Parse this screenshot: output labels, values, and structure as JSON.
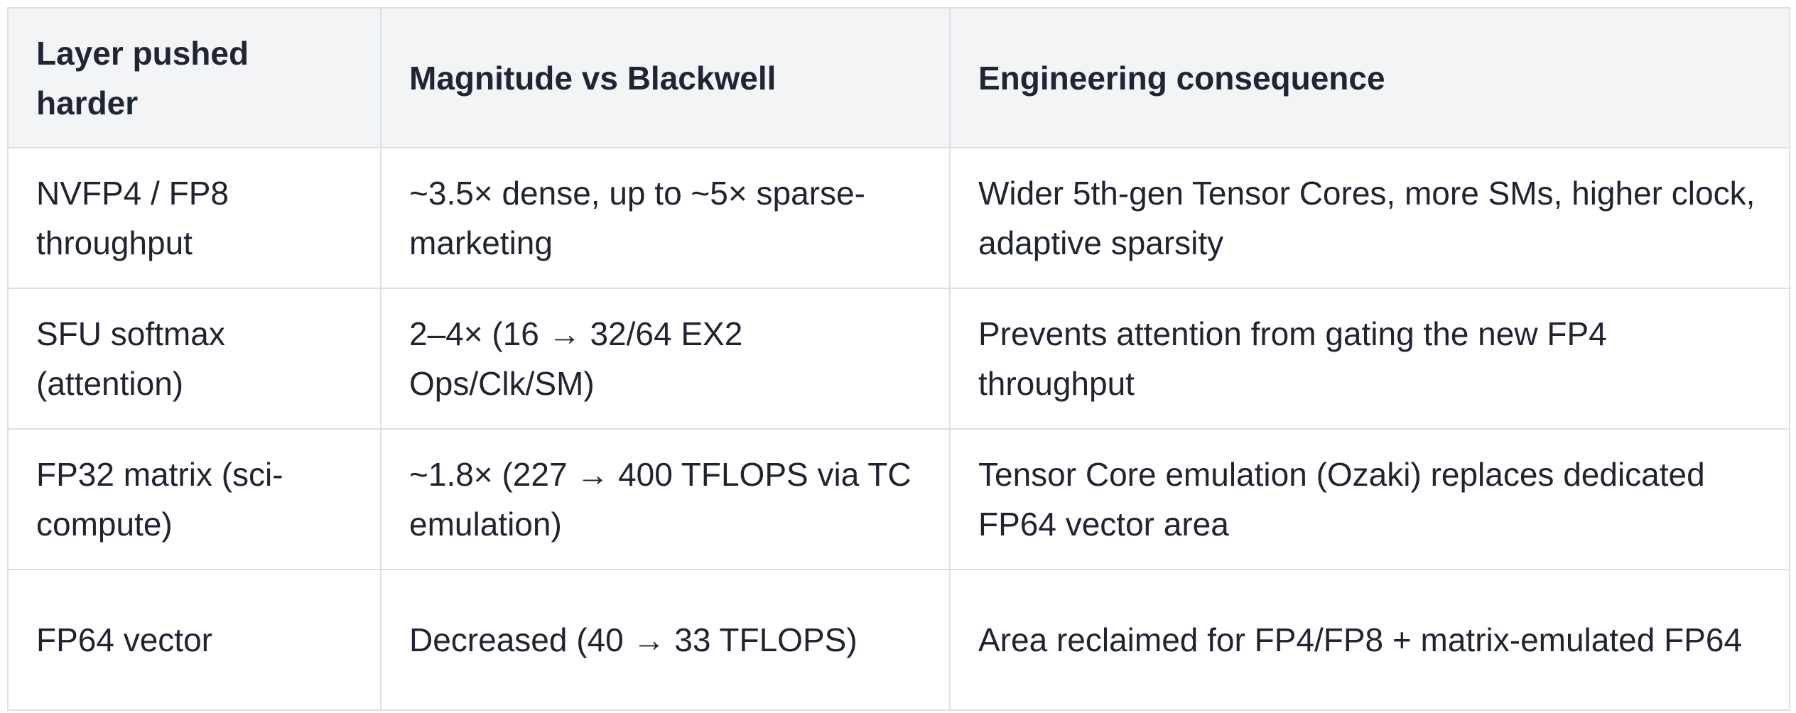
{
  "table": {
    "header": [
      "Layer pushed harder",
      "Magnitude vs Blackwell",
      "Engineering consequence"
    ],
    "rows": [
      [
        "NVFP4 / FP8 throughput",
        "~3.5× dense, up to ~5× sparse-marketing",
        "Wider 5th-gen Tensor Cores, more SMs, higher clock, adaptive sparsity"
      ],
      [
        "SFU softmax (attention)",
        "2–4× (16 → 32/64 EX2 Ops/Clk/SM)",
        "Prevents attention from gating the new FP4 throughput"
      ],
      [
        "FP32 matrix (sci-compute)",
        "~1.8× (227 → 400 TFLOPS via TC emulation)",
        "Tensor Core emulation (Ozaki) replaces dedicated FP64 vector area"
      ],
      [
        "FP64 vector",
        "Decreased (40 → 33 TFLOPS)",
        "Area reclaimed for FP4/FP8 + matrix-emulated FP64"
      ]
    ]
  }
}
